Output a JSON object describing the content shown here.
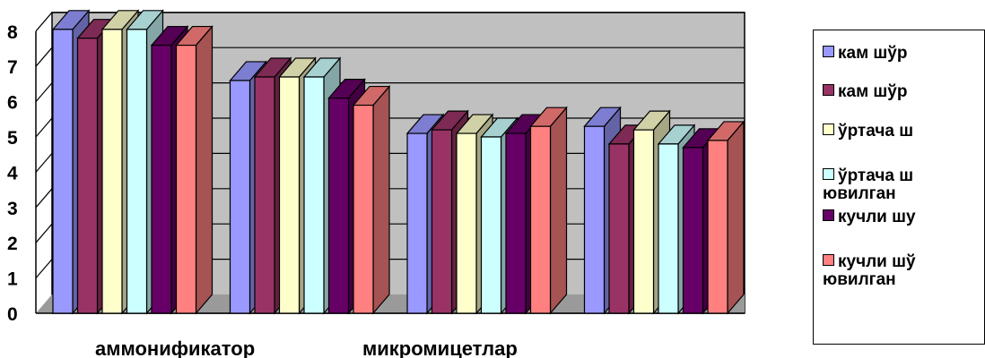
{
  "chart_data": {
    "type": "bar",
    "style": "3d-clustered",
    "categories": [
      "аммонификатор",
      "",
      "микромицетлар",
      ""
    ],
    "category_labels_visible": [
      "аммонификатор",
      "микромицетлар"
    ],
    "y_ticks": [
      "0",
      "1",
      "2",
      "3",
      "4",
      "5",
      "6",
      "7",
      "8"
    ],
    "ylim": [
      0,
      8
    ],
    "grid": true,
    "legend_position": "right",
    "series": [
      {
        "name": "кам шўр",
        "color": "#9999ff",
        "values": [
          8.05,
          6.6,
          5.1,
          5.3
        ]
      },
      {
        "name": "кам шўр",
        "color": "#993366",
        "values": [
          7.8,
          6.7,
          5.2,
          4.8
        ]
      },
      {
        "name": "ўртача ш",
        "color": "#ffffcc",
        "values": [
          8.05,
          6.7,
          5.1,
          5.2
        ]
      },
      {
        "name": "ўртача ш\nювилган",
        "color": "#ccffff",
        "values": [
          8.05,
          6.7,
          5.0,
          4.8
        ]
      },
      {
        "name": "кучли шу",
        "color": "#660066",
        "values": [
          7.6,
          6.1,
          5.1,
          4.7
        ]
      },
      {
        "name": "кучли шў\nювилган",
        "color": "#ff8080",
        "values": [
          7.6,
          5.9,
          5.3,
          4.9
        ]
      }
    ]
  }
}
